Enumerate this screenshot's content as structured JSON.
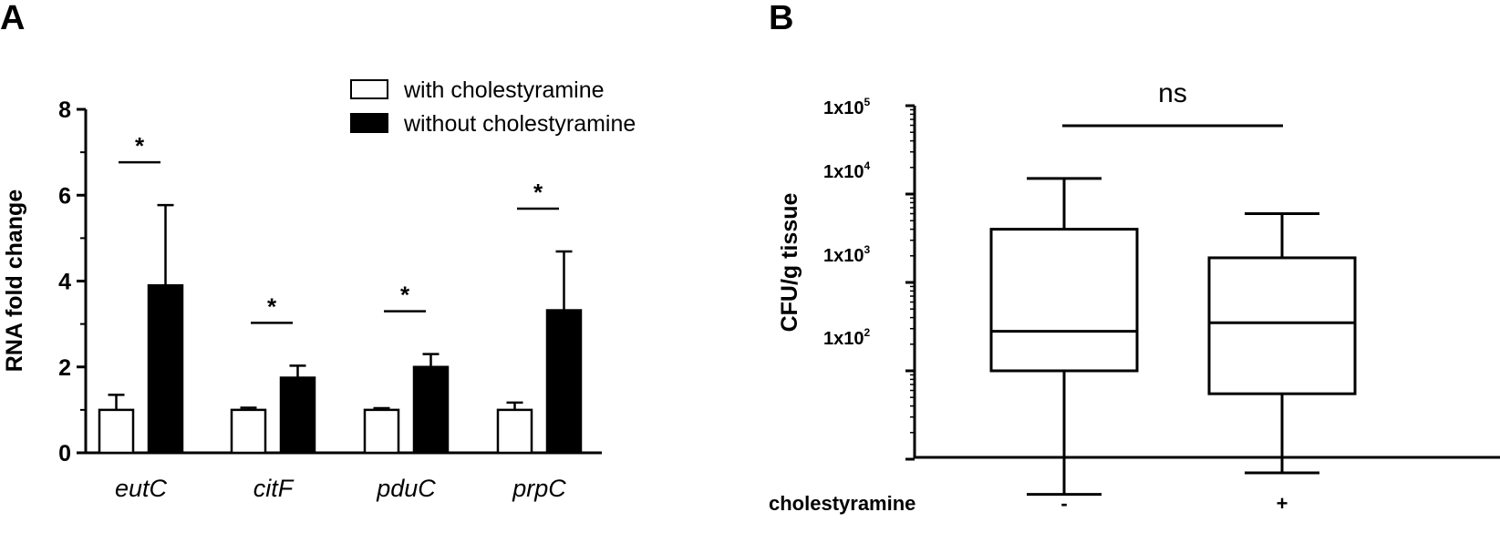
{
  "chart_data": [
    {
      "panel": "A",
      "type": "bar",
      "ylabel": "RNA fold change",
      "xlabel": "",
      "ylim": [
        0,
        8
      ],
      "yticks": [
        "0",
        "2",
        "4",
        "6",
        "8"
      ],
      "categories": [
        "eutC",
        "citF",
        "pduC",
        "prpC"
      ],
      "series": [
        {
          "name": "with cholestyramine",
          "color": "#ffffff",
          "values": [
            1.0,
            1.0,
            1.0,
            1.0
          ],
          "error": [
            0.35,
            0.05,
            0.04,
            0.17
          ]
        },
        {
          "name": "without cholestyramine",
          "color": "#000000",
          "values": [
            3.9,
            1.75,
            2.0,
            3.32
          ],
          "error": [
            1.87,
            0.28,
            0.3,
            1.37
          ]
        }
      ],
      "significance": [
        "*",
        "*",
        "*",
        "*"
      ],
      "legend_position": "top-right"
    },
    {
      "panel": "B",
      "type": "box",
      "ylabel": "CFU/g tissue",
      "yscale": "log",
      "ylim": [
        1,
        100000
      ],
      "ytick_base": [
        "1x10",
        "1x10",
        "1x10",
        "1x10"
      ],
      "ytick_exp": [
        "5",
        "4",
        "3",
        "2"
      ],
      "condition_label": "cholestyramine",
      "categories": [
        "-",
        "+"
      ],
      "boxes": [
        {
          "whisker_low": 4,
          "q1": 100,
          "median": 280,
          "q3": 4000,
          "whisker_high": 15000
        },
        {
          "whisker_low": 7,
          "q1": 55,
          "median": 350,
          "q3": 1900,
          "whisker_high": 6000
        }
      ],
      "comparison": "ns"
    }
  ]
}
